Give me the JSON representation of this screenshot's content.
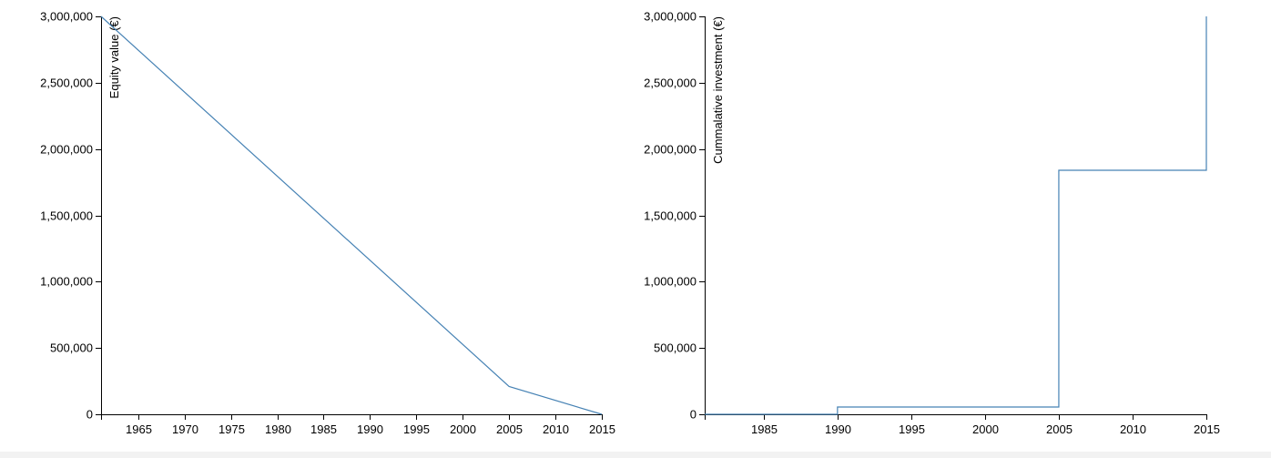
{
  "chart_data": [
    {
      "type": "line",
      "title": "",
      "xlabel": "",
      "ylabel": "Equity value (€)",
      "x": [
        1961,
        2005,
        2015
      ],
      "series": [
        {
          "values": [
            3000000,
            210000,
            0
          ]
        }
      ],
      "xlim": [
        1961,
        2015
      ],
      "ylim": [
        0,
        3000000
      ],
      "x_ticks": [
        1965,
        1970,
        1975,
        1980,
        1985,
        1990,
        1995,
        2000,
        2005,
        2010,
        2015
      ],
      "y_ticks": [
        0,
        500000,
        1000000,
        1500000,
        2000000,
        2500000,
        3000000
      ],
      "y_tick_labels": [
        "0",
        "500,000",
        "1,000,000",
        "1,500,000",
        "2,000,000",
        "2,500,000",
        "3,000,000"
      ],
      "grid": false,
      "line_color": "#4682b4"
    },
    {
      "type": "line",
      "title": "",
      "xlabel": "",
      "ylabel": "Cummalative investment (€)",
      "step": true,
      "x": [
        1981,
        1990,
        1990,
        2005,
        2005,
        2015,
        2015
      ],
      "series": [
        {
          "values": [
            0,
            0,
            55000,
            55000,
            1840000,
            1840000,
            3000000
          ]
        }
      ],
      "xlim": [
        1981,
        2015
      ],
      "ylim": [
        0,
        3000000
      ],
      "x_ticks": [
        1985,
        1990,
        1995,
        2000,
        2005,
        2010,
        2015
      ],
      "y_ticks": [
        0,
        500000,
        1000000,
        1500000,
        2000000,
        2500000,
        3000000
      ],
      "y_tick_labels": [
        "0",
        "500,000",
        "1,000,000",
        "1,500,000",
        "2,000,000",
        "2,500,000",
        "3,000,000"
      ],
      "grid": false,
      "line_color": "#4682b4"
    }
  ]
}
